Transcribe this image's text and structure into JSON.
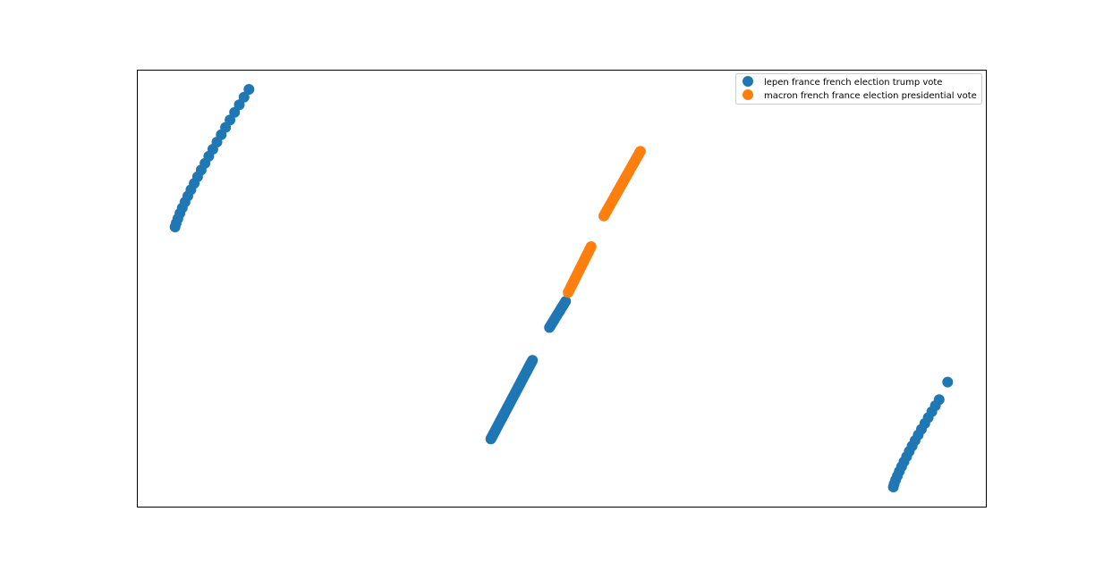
{
  "chart_data": {
    "type": "scatter",
    "title": "",
    "xlabel": "",
    "ylabel": "",
    "axes_ticks_visible": false,
    "grid": false,
    "legend_position": "top-right",
    "xlim": [
      0,
      1
    ],
    "ylim": [
      0,
      1
    ],
    "series": [
      {
        "name": "lepen france french election trump vote",
        "color": "#1f77b4",
        "clusters": [
          {
            "x_start": 0.045,
            "y_start": 0.64,
            "x_end": 0.132,
            "y_end": 0.955,
            "count": 22,
            "curve": "concave"
          },
          {
            "x_start": 0.417,
            "y_start": 0.155,
            "x_end": 0.466,
            "y_end": 0.335,
            "count": 70,
            "curve": "linear"
          },
          {
            "x_start": 0.486,
            "y_start": 0.41,
            "x_end": 0.505,
            "y_end": 0.47,
            "count": 14,
            "curve": "linear"
          },
          {
            "x_start": 0.891,
            "y_start": 0.045,
            "x_end": 0.945,
            "y_end": 0.245,
            "count": 18,
            "curve": "concave"
          },
          {
            "x_start": 0.955,
            "y_start": 0.285,
            "x_end": 0.955,
            "y_end": 0.285,
            "count": 1,
            "curve": "linear"
          }
        ]
      },
      {
        "name": "macron french france election presidential vote",
        "color": "#ff7f0e",
        "clusters": [
          {
            "x_start": 0.508,
            "y_start": 0.49,
            "x_end": 0.535,
            "y_end": 0.595,
            "count": 30,
            "curve": "linear"
          },
          {
            "x_start": 0.55,
            "y_start": 0.665,
            "x_end": 0.593,
            "y_end": 0.813,
            "count": 40,
            "curve": "linear"
          }
        ]
      }
    ]
  }
}
